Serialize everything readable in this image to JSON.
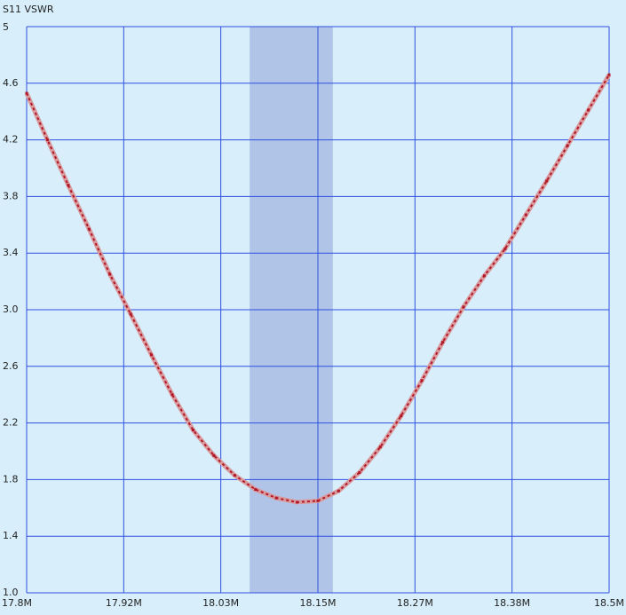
{
  "chart_data": {
    "type": "line",
    "title": "S11 VSWR",
    "x": [
      17800000,
      17825000,
      17850000,
      17875000,
      17900000,
      17925000,
      17950000,
      17975000,
      18000000,
      18025000,
      18050000,
      18075000,
      18100000,
      18125000,
      18150000,
      18175000,
      18200000,
      18225000,
      18250000,
      18275000,
      18300000,
      18325000,
      18350000,
      18375000,
      18400000,
      18425000,
      18450000,
      18475000,
      18500000
    ],
    "series": [
      {
        "color": "#b01828",
        "values": [
          4.53,
          4.2,
          3.88,
          3.57,
          3.25,
          2.97,
          2.68,
          2.4,
          2.15,
          1.97,
          1.83,
          1.73,
          1.67,
          1.64,
          1.65,
          1.72,
          1.85,
          2.03,
          2.25,
          2.5,
          2.77,
          3.02,
          3.24,
          3.43,
          3.67,
          3.91,
          4.16,
          4.41,
          4.66
        ]
      }
    ],
    "xlim": [
      17800000,
      18500000
    ],
    "xticks": [
      {
        "value": 17800000,
        "label": "17.8M"
      },
      {
        "value": 17916667,
        "label": "17.92M"
      },
      {
        "value": 18033333,
        "label": "18.03M"
      },
      {
        "value": 18150000,
        "label": "18.15M"
      },
      {
        "value": 18266667,
        "label": "18.27M"
      },
      {
        "value": 18383333,
        "label": "18.38M"
      },
      {
        "value": 18500000,
        "label": "18.5M"
      }
    ],
    "ylim": [
      1,
      5
    ],
    "yticks": [
      {
        "value": 1,
        "label": "1.0"
      },
      1.4,
      1.8,
      2.2,
      2.6,
      {
        "value": 3,
        "label": "3.0"
      },
      3.4,
      3.8,
      4.2,
      4.6,
      5
    ],
    "grid": true,
    "grid_color": "#2f4fe0",
    "background": "#d8effb",
    "highlight": {
      "range": [
        18068000,
        18168000
      ],
      "color": "#b0c4e8"
    }
  }
}
